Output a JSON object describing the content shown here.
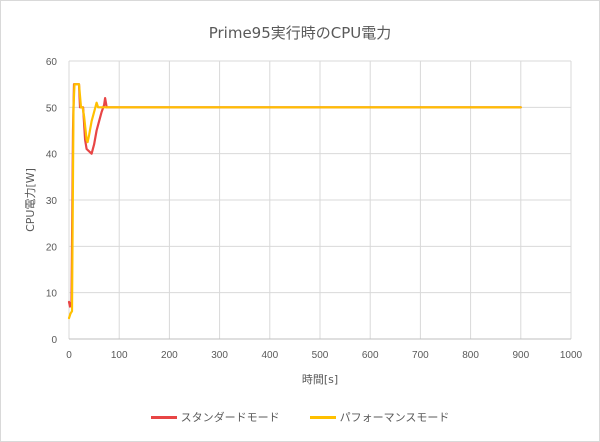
{
  "chart_data": {
    "type": "line",
    "title": "Prime95実行時のCPU電力",
    "xlabel": "時間[s]",
    "ylabel": "CPU電力[W]",
    "xlim": [
      0,
      1000
    ],
    "ylim": [
      0,
      60
    ],
    "x_ticks": [
      0,
      100,
      200,
      300,
      400,
      500,
      600,
      700,
      800,
      900,
      1000
    ],
    "y_ticks": [
      0,
      10,
      20,
      30,
      40,
      50,
      60
    ],
    "grid": true,
    "legend_position": "bottom",
    "series": [
      {
        "name": "スタンダードモード",
        "color": "#e84545",
        "points": [
          [
            0,
            8
          ],
          [
            2,
            7
          ],
          [
            5,
            8
          ],
          [
            8,
            45
          ],
          [
            10,
            55
          ],
          [
            15,
            55
          ],
          [
            20,
            55
          ],
          [
            22,
            50
          ],
          [
            25,
            50
          ],
          [
            28,
            50
          ],
          [
            32,
            43
          ],
          [
            35,
            41
          ],
          [
            40,
            40.5
          ],
          [
            45,
            40
          ],
          [
            50,
            42
          ],
          [
            55,
            45
          ],
          [
            60,
            47
          ],
          [
            65,
            49
          ],
          [
            70,
            50.5
          ],
          [
            72,
            52
          ],
          [
            75,
            50
          ],
          [
            80,
            50
          ],
          [
            100,
            50
          ],
          [
            200,
            50
          ],
          [
            300,
            50
          ],
          [
            400,
            50
          ],
          [
            500,
            50
          ],
          [
            600,
            50
          ],
          [
            700,
            50
          ],
          [
            800,
            50
          ],
          [
            900,
            50
          ]
        ]
      },
      {
        "name": "パフォーマンスモード",
        "color": "#ffc000",
        "points": [
          [
            0,
            4.5
          ],
          [
            3,
            5.5
          ],
          [
            6,
            6
          ],
          [
            9,
            50
          ],
          [
            11,
            55
          ],
          [
            15,
            55
          ],
          [
            20,
            55
          ],
          [
            24,
            50
          ],
          [
            27,
            50
          ],
          [
            30,
            48
          ],
          [
            35,
            43
          ],
          [
            37,
            42.5
          ],
          [
            40,
            44
          ],
          [
            45,
            47
          ],
          [
            50,
            49
          ],
          [
            55,
            51
          ],
          [
            58,
            50
          ],
          [
            62,
            50
          ],
          [
            70,
            50
          ],
          [
            100,
            50
          ],
          [
            200,
            50
          ],
          [
            300,
            50
          ],
          [
            400,
            50
          ],
          [
            500,
            50
          ],
          [
            600,
            50
          ],
          [
            700,
            50
          ],
          [
            800,
            50
          ],
          [
            900,
            50
          ]
        ]
      }
    ]
  },
  "legend": {
    "items": [
      {
        "label": "スタンダードモード",
        "color": "#e84545"
      },
      {
        "label": "パフォーマンスモード",
        "color": "#ffc000"
      }
    ]
  }
}
